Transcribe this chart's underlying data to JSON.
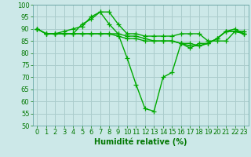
{
  "background_color": "#cce8e8",
  "grid_color": "#aacccc",
  "line_color": "#00aa00",
  "marker": "+",
  "markersize": 4,
  "linewidth": 1.0,
  "xlabel": "Humidité relative (%)",
  "xlabel_fontsize": 7,
  "xlabel_color": "#007700",
  "tick_fontsize": 6,
  "tick_color": "#007700",
  "ylim": [
    50,
    100
  ],
  "xlim": [
    -0.5,
    23.5
  ],
  "yticks": [
    50,
    55,
    60,
    65,
    70,
    75,
    80,
    85,
    90,
    95,
    100
  ],
  "xticks": [
    0,
    1,
    2,
    3,
    4,
    5,
    6,
    7,
    8,
    9,
    10,
    11,
    12,
    13,
    14,
    15,
    16,
    17,
    18,
    19,
    20,
    21,
    22,
    23
  ],
  "series": [
    [
      90,
      88,
      88,
      89,
      90,
      91,
      95,
      97,
      97,
      92,
      88,
      88,
      87,
      87,
      87,
      87,
      88,
      88,
      88,
      85,
      85,
      85,
      89,
      89
    ],
    [
      90,
      88,
      88,
      88,
      88,
      92,
      94,
      97,
      92,
      88,
      78,
      67,
      57,
      56,
      70,
      72,
      84,
      82,
      84,
      84,
      86,
      89,
      90,
      88
    ],
    [
      90,
      88,
      88,
      88,
      88,
      88,
      88,
      88,
      88,
      87,
      86,
      86,
      85,
      85,
      85,
      85,
      84,
      84,
      83,
      84,
      86,
      89,
      89,
      88
    ],
    [
      90,
      88,
      88,
      88,
      88,
      88,
      88,
      88,
      88,
      88,
      87,
      87,
      86,
      85,
      85,
      85,
      84,
      83,
      83,
      84,
      86,
      89,
      89,
      88
    ]
  ]
}
